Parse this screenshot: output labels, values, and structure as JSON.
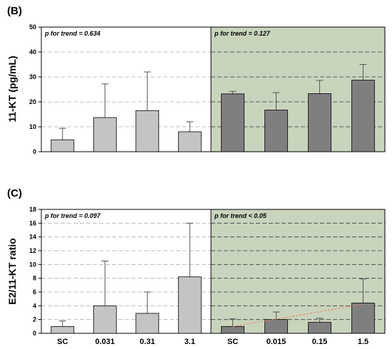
{
  "chart_data": [
    {
      "panel_label": "(B)",
      "type": "bar",
      "ylabel": "11-KT (pg/mL)",
      "ylim": [
        0,
        50
      ],
      "yticks": [
        0,
        10,
        20,
        30,
        40,
        50
      ],
      "show_category_labels": false,
      "categories": [
        "SC",
        "0.031",
        "0.31",
        "3.1",
        "SC",
        "0.015",
        "0.15",
        "1.5"
      ],
      "groups": [
        {
          "annotation": "p for trend = 0.634",
          "background": "#ffffff",
          "bar_color": "#c4c4c4",
          "values": [
            4.8,
            13.7,
            16.5,
            8.0
          ],
          "errors": [
            4.6,
            13.5,
            15.5,
            4.0
          ]
        },
        {
          "annotation": "p for trend = 0.127",
          "background": "#c9d4bd",
          "bar_color": "#7f7f7f",
          "values": [
            23.2,
            16.7,
            23.3,
            28.7
          ],
          "errors": [
            1.0,
            7.0,
            5.3,
            6.3
          ]
        }
      ],
      "trend_line": null
    },
    {
      "panel_label": "(C)",
      "type": "bar",
      "ylabel": "E2/11-KT ratio",
      "ylim": [
        0,
        18
      ],
      "yticks": [
        0,
        2,
        4,
        6,
        8,
        10,
        12,
        14,
        16,
        18
      ],
      "show_category_labels": true,
      "categories": [
        "SC",
        "0.031",
        "0.31",
        "3.1",
        "SC",
        "0.015",
        "0.15",
        "1.5"
      ],
      "groups": [
        {
          "annotation": "p for trend = 0.097",
          "background": "#ffffff",
          "bar_color": "#c4c4c4",
          "values": [
            1.0,
            4.0,
            2.9,
            8.2
          ],
          "errors": [
            0.8,
            6.5,
            3.1,
            7.8
          ]
        },
        {
          "annotation": "p for trend < 0.05",
          "background": "#c9d4bd",
          "bar_color": "#7f7f7f",
          "values": [
            1.0,
            2.0,
            1.6,
            4.4
          ],
          "errors": [
            1.1,
            1.1,
            0.6,
            3.5
          ]
        }
      ],
      "trend_line": {
        "group": 1,
        "from": 1.0,
        "to": 4.2,
        "color": "#e8806a"
      }
    }
  ]
}
